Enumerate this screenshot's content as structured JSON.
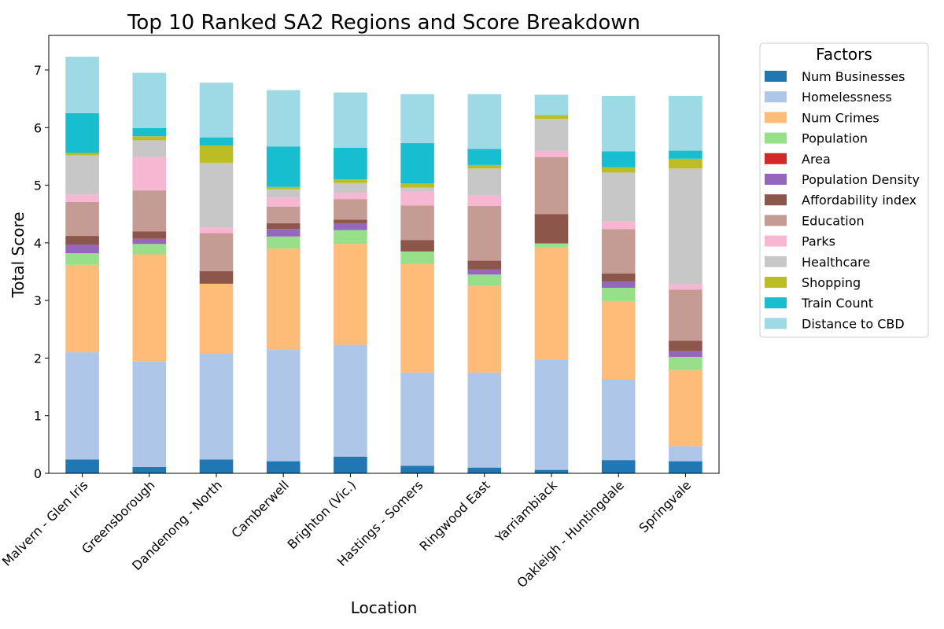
{
  "chart_data": {
    "type": "bar",
    "stacked": true,
    "title": "Top 10 Ranked SA2 Regions and Score Breakdown",
    "xlabel": "Location",
    "ylabel": "Total Score",
    "ylim": [
      0,
      7.6
    ],
    "yticks": [
      "0",
      "1",
      "2",
      "3",
      "4",
      "5",
      "6",
      "7"
    ],
    "grid": false,
    "legend_title": "Factors",
    "legend_placement": "outside-right",
    "categories": [
      "Malvern - Glen Iris",
      "Greensborough",
      "Dandenong - North",
      "Camberwell",
      "Brighton (Vic.)",
      "Hastings - Somers",
      "Ringwood East",
      "Yarriambiack",
      "Oakleigh - Huntingdale",
      "Springvale"
    ],
    "series": [
      {
        "name": "Num Businesses",
        "color": "#1f77b4",
        "values": [
          0.24,
          0.11,
          0.24,
          0.21,
          0.29,
          0.13,
          0.1,
          0.06,
          0.23,
          0.21
        ]
      },
      {
        "name": "Homelessness",
        "color": "#aec7e8",
        "values": [
          1.86,
          1.83,
          1.84,
          1.93,
          1.94,
          1.62,
          1.65,
          1.91,
          1.4,
          0.26
        ]
      },
      {
        "name": "Num Crimes",
        "color": "#ffbb78",
        "values": [
          1.52,
          1.86,
          1.21,
          1.76,
          1.75,
          1.88,
          1.5,
          1.95,
          1.36,
          1.32
        ]
      },
      {
        "name": "Population",
        "color": "#98df8a",
        "values": [
          0.2,
          0.18,
          0.0,
          0.21,
          0.24,
          0.22,
          0.2,
          0.07,
          0.23,
          0.23
        ]
      },
      {
        "name": "Area",
        "color": "#d62728",
        "values": [
          0,
          0,
          0,
          0,
          0,
          0,
          0,
          0,
          0,
          0
        ]
      },
      {
        "name": "Population Density",
        "color": "#9467bd",
        "values": [
          0.15,
          0.09,
          0.0,
          0.13,
          0.12,
          0.0,
          0.09,
          0.0,
          0.11,
          0.1
        ]
      },
      {
        "name": "Affordability index",
        "color": "#8c564b",
        "values": [
          0.15,
          0.13,
          0.22,
          0.1,
          0.06,
          0.2,
          0.15,
          0.51,
          0.14,
          0.18
        ]
      },
      {
        "name": "Education",
        "color": "#c49c94",
        "values": [
          0.59,
          0.71,
          0.66,
          0.29,
          0.36,
          0.6,
          0.95,
          0.99,
          0.77,
          0.89
        ]
      },
      {
        "name": "Parks",
        "color": "#f7b6d2",
        "values": [
          0.13,
          0.58,
          0.09,
          0.15,
          0.11,
          0.24,
          0.19,
          0.11,
          0.13,
          0.09
        ]
      },
      {
        "name": "Healthcare",
        "color": "#c7c7c7",
        "values": [
          0.68,
          0.29,
          1.13,
          0.15,
          0.17,
          0.07,
          0.46,
          0.55,
          0.85,
          2.01
        ]
      },
      {
        "name": "Shopping",
        "color": "#bcbd22",
        "values": [
          0.04,
          0.07,
          0.3,
          0.04,
          0.06,
          0.07,
          0.06,
          0.07,
          0.09,
          0.17
        ]
      },
      {
        "name": "Train Count",
        "color": "#17becf",
        "values": [
          0.69,
          0.14,
          0.14,
          0.7,
          0.55,
          0.7,
          0.28,
          0.0,
          0.28,
          0.14
        ]
      },
      {
        "name": "Distance to CBD",
        "color": "#9edae5",
        "values": [
          0.98,
          0.96,
          0.95,
          0.98,
          0.96,
          0.85,
          0.95,
          0.35,
          0.96,
          0.95
        ]
      }
    ]
  }
}
